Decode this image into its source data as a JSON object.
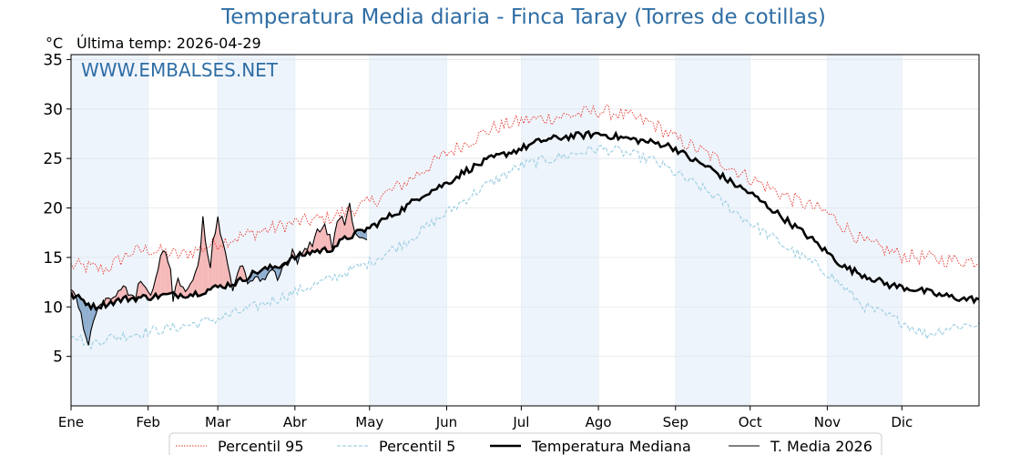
{
  "title": "Temperatura Media diaria - Finca Taray (Torres de cotillas)",
  "unit_label": "°C",
  "last_temp_label": "Última temp: 2026-04-29",
  "watermark": "WWW.EMBALSES.NET",
  "colors": {
    "p95": "#e8332a",
    "p5": "#9fd0e4",
    "median": "#000000",
    "current": "#000000",
    "fill_above": "#f5b8b8",
    "fill_below": "#8eaecf",
    "month_band": "#eef4fb",
    "title": "#2e6da4"
  },
  "chart_data": {
    "type": "line",
    "title": "Temperatura Media diaria - Finca Taray (Torres de cotillas)",
    "ylabel": "°C",
    "xlabel": "",
    "ylim": [
      0,
      35.5
    ],
    "xlim": [
      1,
      366
    ],
    "yticks": [
      5,
      10,
      15,
      20,
      25,
      30,
      35
    ],
    "month_ticks": [
      {
        "label": "Ene",
        "day": 1
      },
      {
        "label": "Feb",
        "day": 32
      },
      {
        "label": "Mar",
        "day": 60
      },
      {
        "label": "Abr",
        "day": 91
      },
      {
        "label": "May",
        "day": 121
      },
      {
        "label": "Jun",
        "day": 152
      },
      {
        "label": "Jul",
        "day": 182
      },
      {
        "label": "Ago",
        "day": 213
      },
      {
        "label": "Sep",
        "day": 244
      },
      {
        "label": "Oct",
        "day": 274
      },
      {
        "label": "Nov",
        "day": 305
      },
      {
        "label": "Dic",
        "day": 335
      }
    ],
    "legend": {
      "position": "bottom-center"
    },
    "series": [
      {
        "name": "Percentil 95",
        "style": "dotted-red",
        "keypoints": [
          [
            1,
            14.2
          ],
          [
            15,
            13.8
          ],
          [
            25,
            15.5
          ],
          [
            32,
            15.8
          ],
          [
            45,
            15.2
          ],
          [
            60,
            16.5
          ],
          [
            75,
            17.5
          ],
          [
            91,
            18.5
          ],
          [
            105,
            19.0
          ],
          [
            121,
            20.5
          ],
          [
            135,
            22.5
          ],
          [
            152,
            25.5
          ],
          [
            170,
            28.0
          ],
          [
            182,
            28.8
          ],
          [
            200,
            29.3
          ],
          [
            213,
            29.8
          ],
          [
            220,
            29.6
          ],
          [
            235,
            28.5
          ],
          [
            244,
            27.0
          ],
          [
            258,
            25.3
          ],
          [
            274,
            23.0
          ],
          [
            290,
            21.0
          ],
          [
            305,
            19.5
          ],
          [
            320,
            16.5
          ],
          [
            335,
            15.2
          ],
          [
            350,
            14.8
          ],
          [
            366,
            14.6
          ]
        ]
      },
      {
        "name": "Percentil 5",
        "style": "dashed-lightblue",
        "keypoints": [
          [
            1,
            7.5
          ],
          [
            8,
            6.2
          ],
          [
            15,
            6.8
          ],
          [
            32,
            7.5
          ],
          [
            45,
            8.0
          ],
          [
            60,
            8.8
          ],
          [
            75,
            10.0
          ],
          [
            91,
            11.5
          ],
          [
            105,
            12.8
          ],
          [
            121,
            14.5
          ],
          [
            135,
            16.5
          ],
          [
            152,
            19.5
          ],
          [
            166,
            22.0
          ],
          [
            182,
            24.3
          ],
          [
            200,
            25.3
          ],
          [
            213,
            26.0
          ],
          [
            220,
            25.8
          ],
          [
            235,
            24.8
          ],
          [
            244,
            23.5
          ],
          [
            258,
            21.5
          ],
          [
            274,
            18.5
          ],
          [
            290,
            15.8
          ],
          [
            305,
            13.5
          ],
          [
            320,
            10.0
          ],
          [
            335,
            8.5
          ],
          [
            345,
            7.2
          ],
          [
            355,
            8.0
          ],
          [
            366,
            8.3
          ]
        ]
      },
      {
        "name": "Temperatura Mediana",
        "style": "thick-black",
        "keypoints": [
          [
            1,
            11.2
          ],
          [
            5,
            10.8
          ],
          [
            10,
            10.0
          ],
          [
            15,
            10.3
          ],
          [
            22,
            10.8
          ],
          [
            32,
            11.0
          ],
          [
            40,
            11.2
          ],
          [
            50,
            11.3
          ],
          [
            60,
            12.0
          ],
          [
            68,
            12.5
          ],
          [
            75,
            13.5
          ],
          [
            85,
            14.2
          ],
          [
            91,
            15.0
          ],
          [
            98,
            15.6
          ],
          [
            105,
            15.8
          ],
          [
            112,
            17.0
          ],
          [
            121,
            18.0
          ],
          [
            128,
            19.0
          ],
          [
            135,
            20.0
          ],
          [
            142,
            21.3
          ],
          [
            152,
            22.5
          ],
          [
            160,
            23.8
          ],
          [
            170,
            25.0
          ],
          [
            182,
            26.0
          ],
          [
            190,
            26.8
          ],
          [
            200,
            27.2
          ],
          [
            213,
            27.5
          ],
          [
            220,
            27.2
          ],
          [
            230,
            26.8
          ],
          [
            240,
            26.4
          ],
          [
            244,
            26.0
          ],
          [
            250,
            25.0
          ],
          [
            258,
            24.0
          ],
          [
            265,
            22.8
          ],
          [
            274,
            21.5
          ],
          [
            282,
            20.0
          ],
          [
            290,
            18.5
          ],
          [
            298,
            17.0
          ],
          [
            305,
            15.5
          ],
          [
            312,
            14.0
          ],
          [
            320,
            13.2
          ],
          [
            330,
            12.2
          ],
          [
            340,
            11.8
          ],
          [
            350,
            11.2
          ],
          [
            360,
            10.8
          ],
          [
            366,
            10.8
          ]
        ]
      },
      {
        "name": "T. Media 2026",
        "style": "thin-black",
        "keypoints": [
          [
            1,
            11.5
          ],
          [
            3,
            11.0
          ],
          [
            5,
            9.5
          ],
          [
            6,
            8.0
          ],
          [
            7,
            7.0
          ],
          [
            8,
            6.0
          ],
          [
            10,
            8.5
          ],
          [
            12,
            10.2
          ],
          [
            15,
            10.5
          ],
          [
            18,
            11.0
          ],
          [
            21,
            12.0
          ],
          [
            24,
            11.5
          ],
          [
            27,
            10.5
          ],
          [
            28,
            12.5
          ],
          [
            30,
            12.0
          ],
          [
            33,
            11.5
          ],
          [
            35,
            12.5
          ],
          [
            37,
            15.5
          ],
          [
            39,
            15.8
          ],
          [
            41,
            13.5
          ],
          [
            42,
            10.5
          ],
          [
            44,
            13.0
          ],
          [
            46,
            12.0
          ],
          [
            48,
            11.5
          ],
          [
            50,
            12.5
          ],
          [
            52,
            14.5
          ],
          [
            53,
            16.0
          ],
          [
            54,
            19.5
          ],
          [
            55,
            17.0
          ],
          [
            57,
            14.0
          ],
          [
            58,
            16.5
          ],
          [
            60,
            19.0
          ],
          [
            62,
            16.5
          ],
          [
            64,
            14.0
          ],
          [
            66,
            12.0
          ],
          [
            68,
            13.5
          ],
          [
            70,
            14.0
          ],
          [
            72,
            12.5
          ],
          [
            74,
            13.0
          ],
          [
            76,
            13.0
          ],
          [
            78,
            12.5
          ],
          [
            80,
            13.5
          ],
          [
            82,
            13.8
          ],
          [
            84,
            13.0
          ],
          [
            86,
            14.0
          ],
          [
            88,
            14.5
          ],
          [
            90,
            15.5
          ],
          [
            92,
            14.5
          ],
          [
            94,
            15.8
          ],
          [
            96,
            16.0
          ],
          [
            98,
            16.5
          ],
          [
            100,
            17.5
          ],
          [
            102,
            18.0
          ],
          [
            103,
            18.3
          ],
          [
            105,
            17.0
          ],
          [
            106,
            16.0
          ],
          [
            108,
            18.5
          ],
          [
            110,
            18.8
          ],
          [
            111,
            18.5
          ],
          [
            112,
            19.5
          ],
          [
            113,
            20.5
          ],
          [
            114,
            18.5
          ],
          [
            116,
            17.0
          ],
          [
            118,
            16.8
          ],
          [
            120,
            17.0
          ]
        ]
      }
    ]
  },
  "legend": [
    {
      "label": "Percentil 95"
    },
    {
      "label": "Percentil 5"
    },
    {
      "label": "Temperatura Mediana"
    },
    {
      "label": "T. Media 2026"
    }
  ]
}
